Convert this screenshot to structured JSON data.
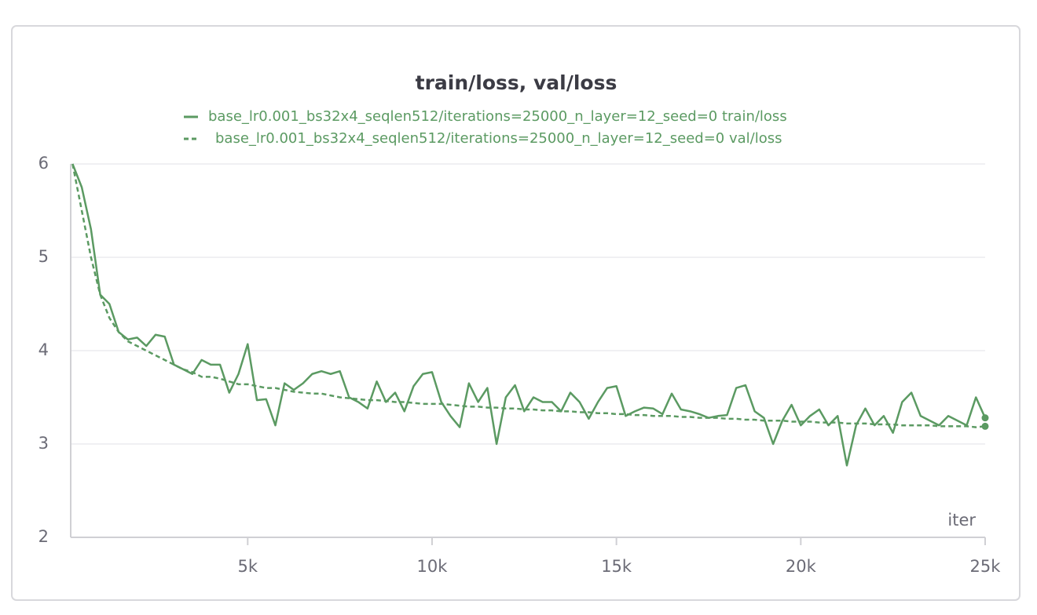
{
  "chart_data": {
    "type": "line",
    "title": "train/loss, val/loss",
    "x_label": "iter",
    "x": [
      250,
      500,
      750,
      1000,
      1250,
      1500,
      1750,
      2000,
      2250,
      2500,
      2750,
      3000,
      3250,
      3500,
      3750,
      4000,
      4250,
      4500,
      4750,
      5000,
      5250,
      5500,
      5750,
      6000,
      6250,
      6500,
      6750,
      7000,
      7250,
      7500,
      7750,
      8000,
      8250,
      8500,
      8750,
      9000,
      9250,
      9500,
      9750,
      10000,
      10250,
      10500,
      10750,
      11000,
      11250,
      11500,
      11750,
      12000,
      12250,
      12500,
      12750,
      13000,
      13250,
      13500,
      13750,
      14000,
      14250,
      14500,
      14750,
      15000,
      15250,
      15500,
      15750,
      16000,
      16250,
      16500,
      16750,
      17000,
      17250,
      17500,
      17750,
      18000,
      18250,
      18500,
      18750,
      19000,
      19250,
      19500,
      19750,
      20000,
      20250,
      20500,
      20750,
      21000,
      21250,
      21500,
      21750,
      22000,
      22250,
      22500,
      22750,
      23000,
      23250,
      23500,
      23750,
      24000,
      24250,
      24500,
      24750,
      25000
    ],
    "series": [
      {
        "name": "base_lr0.001_bs32x4_seqlen512/iterations=25000_n_layer=12_seed=0 train/loss",
        "color": "#5b9a62",
        "dash": false,
        "values": [
          6.0,
          5.75,
          5.3,
          4.6,
          4.5,
          4.2,
          4.12,
          4.14,
          4.05,
          4.17,
          4.15,
          3.85,
          3.8,
          3.75,
          3.9,
          3.85,
          3.85,
          3.55,
          3.75,
          4.07,
          3.47,
          3.48,
          3.2,
          3.65,
          3.58,
          3.65,
          3.75,
          3.78,
          3.75,
          3.78,
          3.5,
          3.45,
          3.38,
          3.67,
          3.45,
          3.55,
          3.35,
          3.62,
          3.75,
          3.77,
          3.45,
          3.3,
          3.18,
          3.65,
          3.45,
          3.6,
          3.0,
          3.5,
          3.63,
          3.35,
          3.5,
          3.45,
          3.45,
          3.35,
          3.55,
          3.45,
          3.27,
          3.45,
          3.6,
          3.62,
          3.3,
          3.35,
          3.39,
          3.38,
          3.32,
          3.54,
          3.37,
          3.35,
          3.32,
          3.28,
          3.3,
          3.31,
          3.6,
          3.63,
          3.35,
          3.28,
          3.0,
          3.25,
          3.42,
          3.2,
          3.3,
          3.37,
          3.2,
          3.3,
          2.77,
          3.2,
          3.38,
          3.2,
          3.3,
          3.12,
          3.45,
          3.55,
          3.3,
          3.25,
          3.2,
          3.3,
          3.25,
          3.2,
          3.5,
          3.28
        ]
      },
      {
        "name": "base_lr0.001_bs32x4_seqlen512/iterations=25000_n_layer=12_seed=0 val/loss",
        "color": "#5b9a62",
        "dash": true,
        "values": [
          6.0,
          5.5,
          5.0,
          4.6,
          4.35,
          4.2,
          4.1,
          4.05,
          4.0,
          3.95,
          3.9,
          3.85,
          3.8,
          3.77,
          3.72,
          3.72,
          3.7,
          3.67,
          3.64,
          3.64,
          3.62,
          3.6,
          3.6,
          3.58,
          3.56,
          3.55,
          3.54,
          3.54,
          3.52,
          3.5,
          3.49,
          3.48,
          3.47,
          3.47,
          3.46,
          3.45,
          3.45,
          3.44,
          3.43,
          3.43,
          3.43,
          3.42,
          3.41,
          3.4,
          3.4,
          3.39,
          3.39,
          3.38,
          3.38,
          3.37,
          3.37,
          3.36,
          3.36,
          3.35,
          3.35,
          3.34,
          3.34,
          3.33,
          3.33,
          3.32,
          3.32,
          3.31,
          3.31,
          3.3,
          3.3,
          3.3,
          3.29,
          3.29,
          3.28,
          3.28,
          3.28,
          3.27,
          3.27,
          3.26,
          3.26,
          3.25,
          3.25,
          3.25,
          3.24,
          3.24,
          3.24,
          3.23,
          3.23,
          3.23,
          3.22,
          3.22,
          3.22,
          3.21,
          3.21,
          3.21,
          3.2,
          3.2,
          3.2,
          3.2,
          3.19,
          3.19,
          3.19,
          3.19,
          3.18,
          3.19
        ]
      }
    ],
    "xlim": [
      200,
      25000
    ],
    "ylim": [
      2,
      6
    ],
    "xticks": [
      {
        "value": 5000,
        "label": "5k"
      },
      {
        "value": 10000,
        "label": "10k"
      },
      {
        "value": 15000,
        "label": "15k"
      },
      {
        "value": 20000,
        "label": "20k"
      },
      {
        "value": 25000,
        "label": "25k"
      }
    ],
    "yticks": [
      2,
      3,
      4,
      5,
      6
    ],
    "grid": true
  }
}
